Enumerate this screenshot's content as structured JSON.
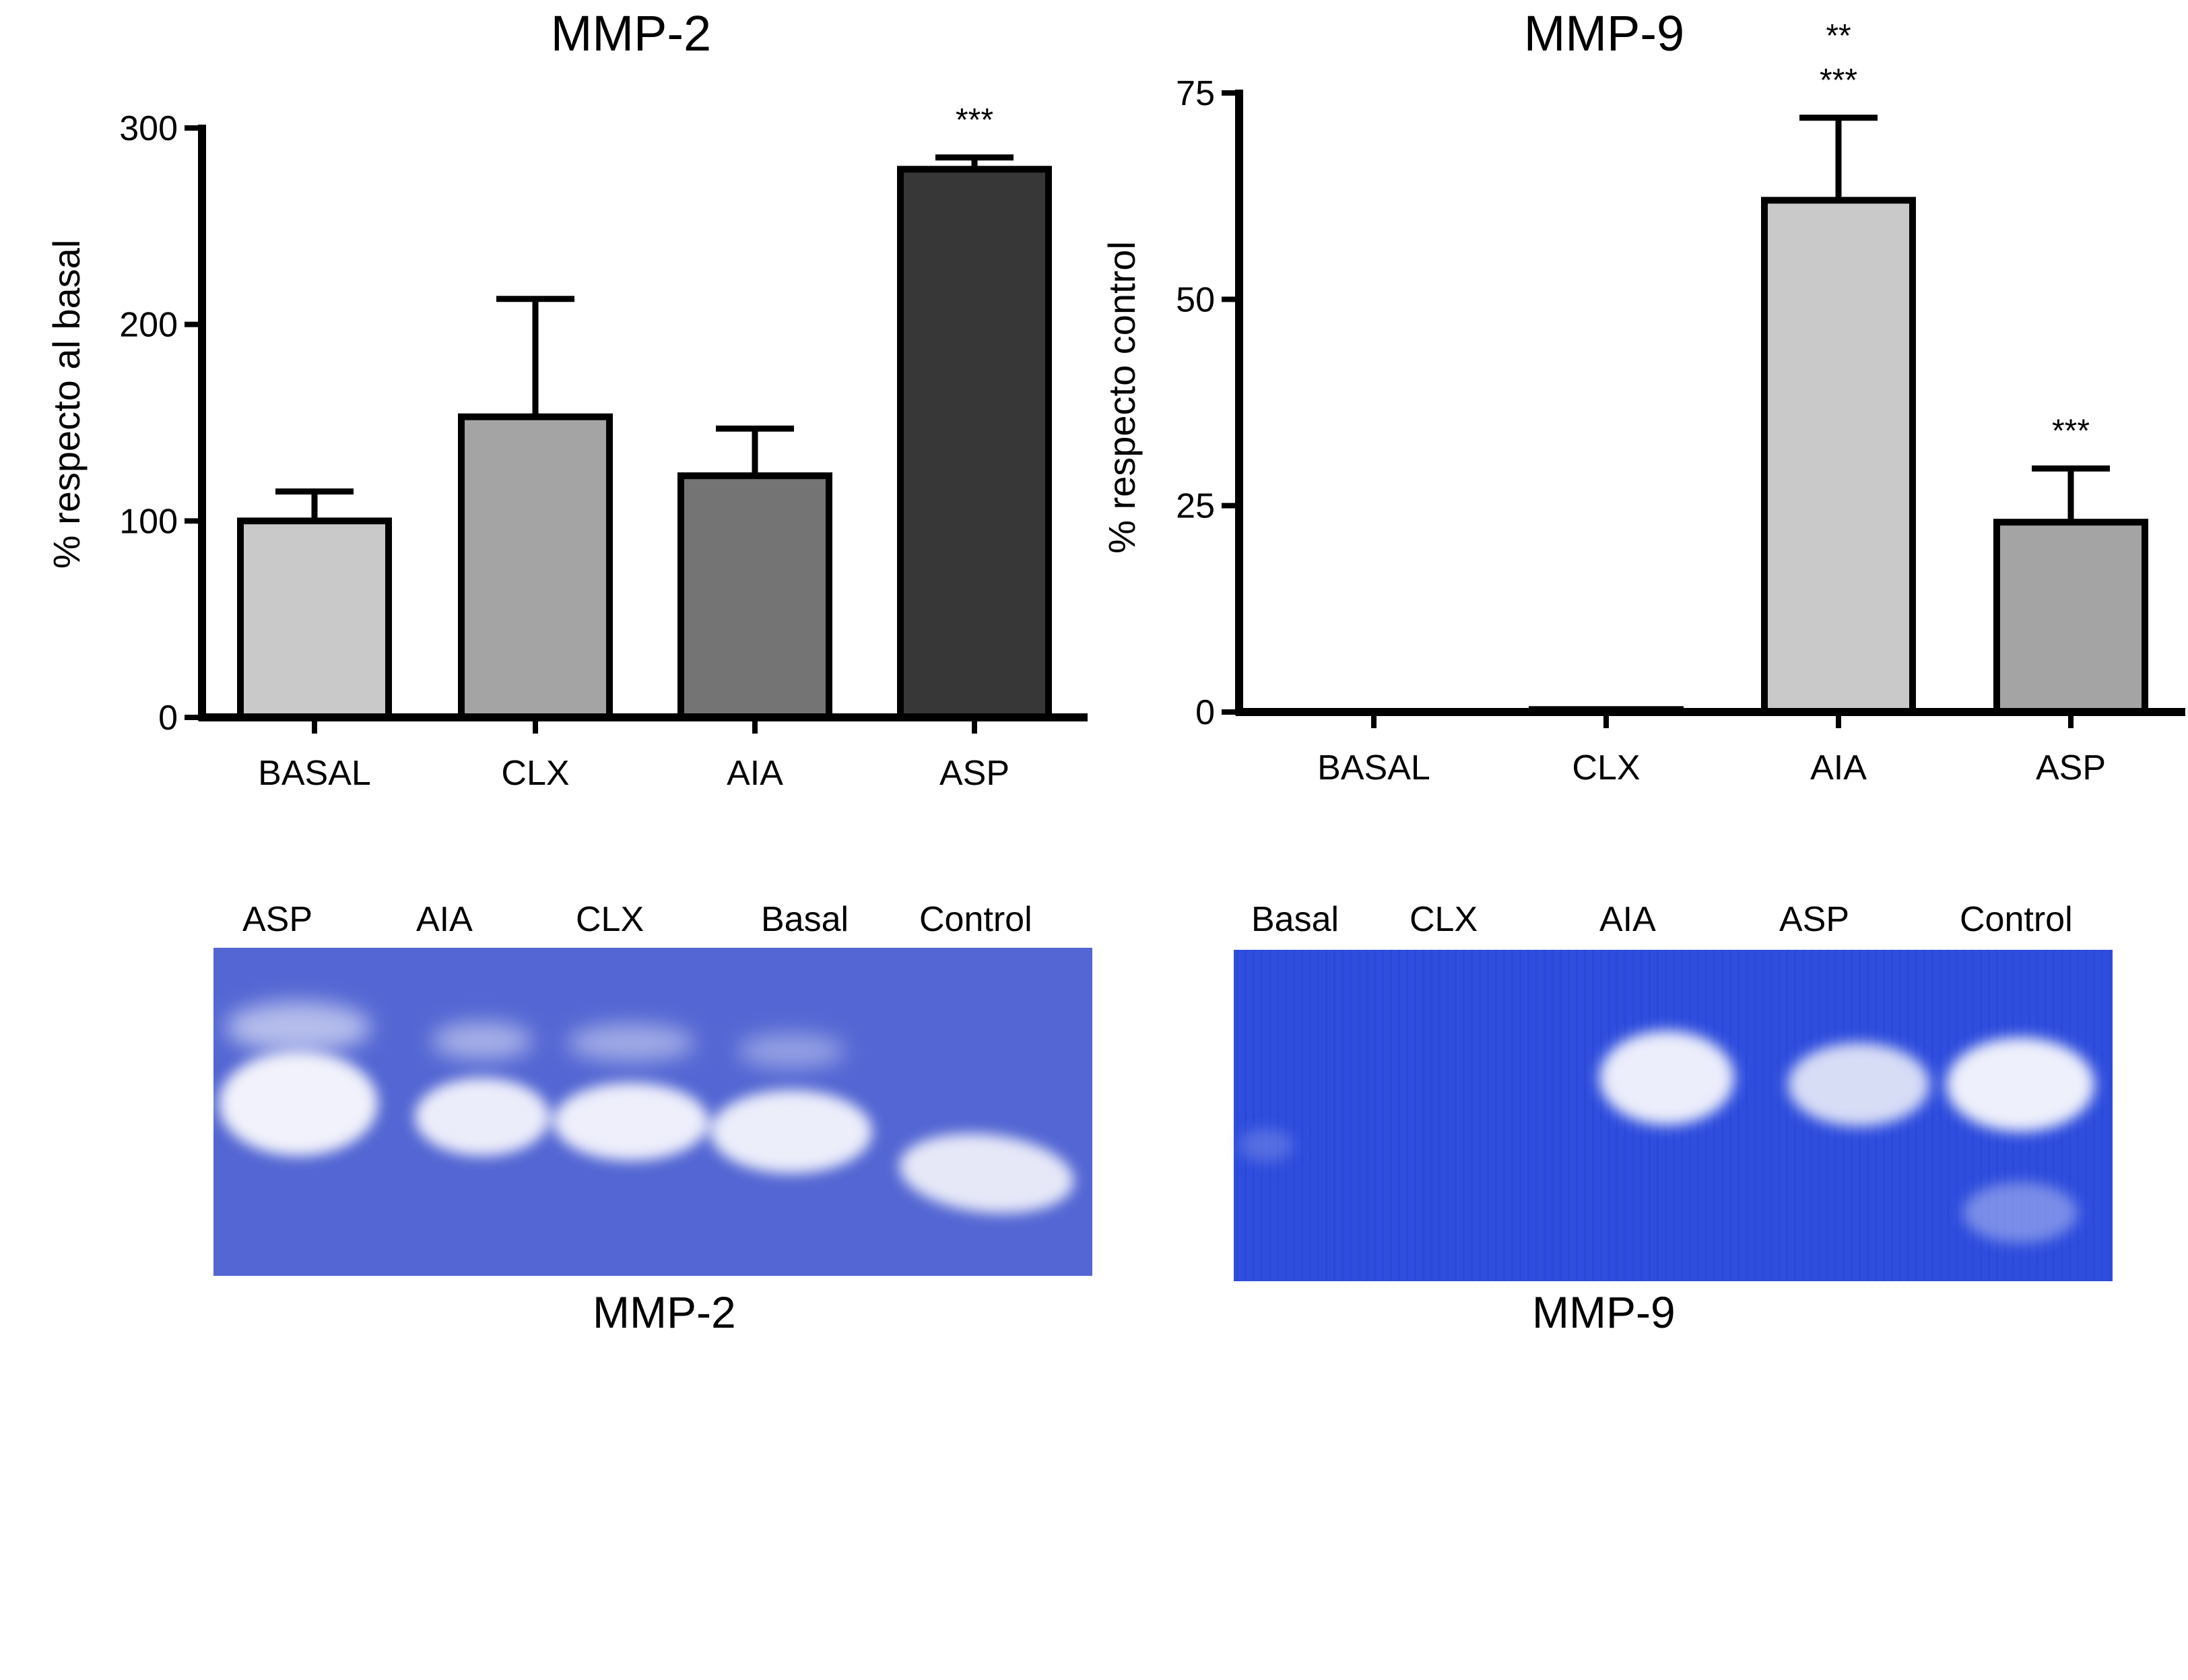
{
  "chart_data": [
    {
      "type": "bar",
      "title": "MMP-2",
      "ylabel": "% respecto al basal",
      "xlabel": "",
      "categories": [
        "BASAL",
        "CLX",
        "AIA",
        "ASP"
      ],
      "values": [
        100,
        153,
        123,
        279
      ],
      "errors": [
        15,
        60,
        24,
        6
      ],
      "annotations": [
        "",
        "",
        "",
        "***"
      ],
      "colors": [
        "#c8c9c8",
        "#a3a4a3",
        "#747474",
        "#373737"
      ],
      "ylim": [
        0,
        300
      ],
      "yticks": [
        "0",
        "100",
        "200",
        "300"
      ],
      "grid": false,
      "legend": "none"
    },
    {
      "type": "bar",
      "title": "MMP-9",
      "ylabel": "% respecto control",
      "xlabel": "",
      "categories": [
        "BASAL",
        "CLX",
        "AIA",
        "ASP"
      ],
      "values": [
        0,
        0.3,
        62,
        23
      ],
      "errors": [
        0,
        0,
        10,
        6.5
      ],
      "annotations": [
        "",
        "",
        "**\n***",
        "***"
      ],
      "colors": [
        "#c8c9c8",
        "#a3a4a3",
        "#c8c9c8",
        "#a3a4a3"
      ],
      "ylim": [
        0,
        75
      ],
      "yticks": [
        "0",
        "25",
        "50",
        "75"
      ],
      "grid": false,
      "legend": "none"
    }
  ],
  "gels": [
    {
      "title": "MMP-2",
      "lanes": [
        "ASP",
        "AIA",
        "CLX",
        "Basal",
        "Control"
      ]
    },
    {
      "title": "MMP-9",
      "lanes": [
        "Basal",
        "CLX",
        "AIA",
        "ASP",
        "Control"
      ]
    }
  ]
}
